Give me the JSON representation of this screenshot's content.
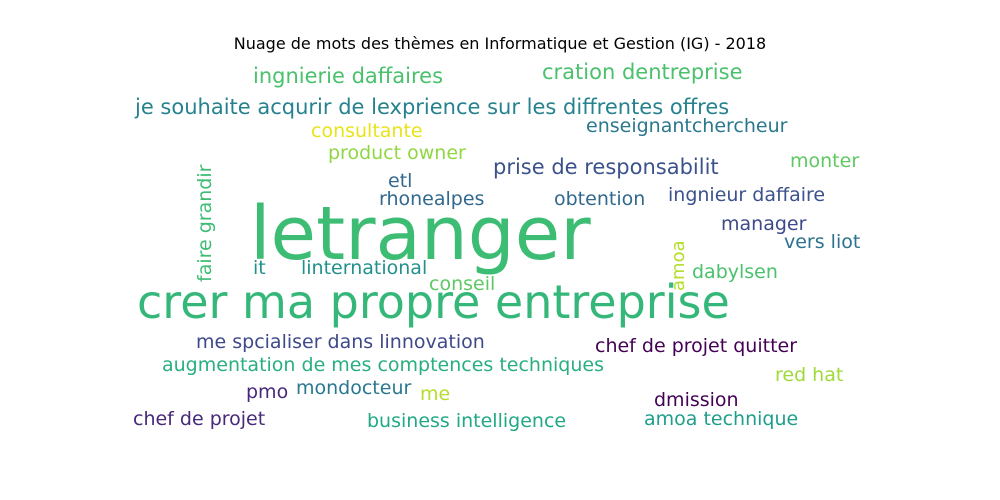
{
  "chart_data": {
    "type": "wordcloud",
    "title": "Nuage de mots des thèmes en Informatique et Gestion (IG) - 2018",
    "words": [
      {
        "text": "letranger",
        "weight": 1.0,
        "color": "#3dbc74",
        "orientation": "horizontal"
      },
      {
        "text": "crer ma propre entreprise",
        "weight": 0.62,
        "color": "#35b779",
        "orientation": "horizontal"
      },
      {
        "text": "ingnierie daffaires",
        "weight": 0.3,
        "color": "#4ac16d",
        "orientation": "horizontal"
      },
      {
        "text": "cration dentreprise",
        "weight": 0.3,
        "color": "#4ac16d",
        "orientation": "horizontal"
      },
      {
        "text": "je souhaite acqurir de lexprience sur les diffrentes offres",
        "weight": 0.3,
        "color": "#26828e",
        "orientation": "horizontal"
      },
      {
        "text": "enseignantchercheur",
        "weight": 0.28,
        "color": "#2a788e",
        "orientation": "horizontal"
      },
      {
        "text": "consultante",
        "weight": 0.28,
        "color": "#e7e419",
        "orientation": "horizontal"
      },
      {
        "text": "product owner",
        "weight": 0.28,
        "color": "#90d743",
        "orientation": "horizontal"
      },
      {
        "text": "prise de responsabilit",
        "weight": 0.3,
        "color": "#3b528b",
        "orientation": "horizontal"
      },
      {
        "text": "monter",
        "weight": 0.28,
        "color": "#5ec962",
        "orientation": "horizontal"
      },
      {
        "text": "faire grandir",
        "weight": 0.28,
        "color": "#3dbc74",
        "orientation": "vertical"
      },
      {
        "text": "etl",
        "weight": 0.28,
        "color": "#31688e",
        "orientation": "horizontal"
      },
      {
        "text": "rhonealpes",
        "weight": 0.28,
        "color": "#31688e",
        "orientation": "horizontal"
      },
      {
        "text": "obtention",
        "weight": 0.28,
        "color": "#31688e",
        "orientation": "horizontal"
      },
      {
        "text": "ingnieur daffaire",
        "weight": 0.28,
        "color": "#3b528b",
        "orientation": "horizontal"
      },
      {
        "text": "manager",
        "weight": 0.28,
        "color": "#3e4989",
        "orientation": "horizontal"
      },
      {
        "text": "vers liot",
        "weight": 0.28,
        "color": "#2c728e",
        "orientation": "horizontal"
      },
      {
        "text": "amoa",
        "weight": 0.26,
        "color": "#b5de2b",
        "orientation": "vertical"
      },
      {
        "text": "it",
        "weight": 0.28,
        "color": "#21918c",
        "orientation": "horizontal"
      },
      {
        "text": "linternational",
        "weight": 0.28,
        "color": "#21918c",
        "orientation": "horizontal"
      },
      {
        "text": "conseil",
        "weight": 0.28,
        "color": "#5ec962",
        "orientation": "horizontal"
      },
      {
        "text": "dabylsen",
        "weight": 0.28,
        "color": "#4ac16d",
        "orientation": "horizontal"
      },
      {
        "text": "me spcialiser dans linnovation",
        "weight": 0.28,
        "color": "#3e4989",
        "orientation": "horizontal"
      },
      {
        "text": "chef de projet quitter",
        "weight": 0.28,
        "color": "#440154",
        "orientation": "horizontal"
      },
      {
        "text": "augmentation de mes comptences techniques",
        "weight": 0.28,
        "color": "#29af7f",
        "orientation": "horizontal"
      },
      {
        "text": "pmo",
        "weight": 0.28,
        "color": "#482878",
        "orientation": "horizontal"
      },
      {
        "text": "mondocteur",
        "weight": 0.28,
        "color": "#2a788e",
        "orientation": "horizontal"
      },
      {
        "text": "me",
        "weight": 0.28,
        "color": "#b5de2b",
        "orientation": "horizontal"
      },
      {
        "text": "red hat",
        "weight": 0.28,
        "color": "#a0da39",
        "orientation": "horizontal"
      },
      {
        "text": "dmission",
        "weight": 0.28,
        "color": "#440154",
        "orientation": "horizontal"
      },
      {
        "text": "chef de projet",
        "weight": 0.28,
        "color": "#482878",
        "orientation": "horizontal"
      },
      {
        "text": "business intelligence",
        "weight": 0.28,
        "color": "#22a884",
        "orientation": "horizontal"
      },
      {
        "text": "amoa technique",
        "weight": 0.28,
        "color": "#1f9e89",
        "orientation": "horizontal"
      }
    ]
  }
}
